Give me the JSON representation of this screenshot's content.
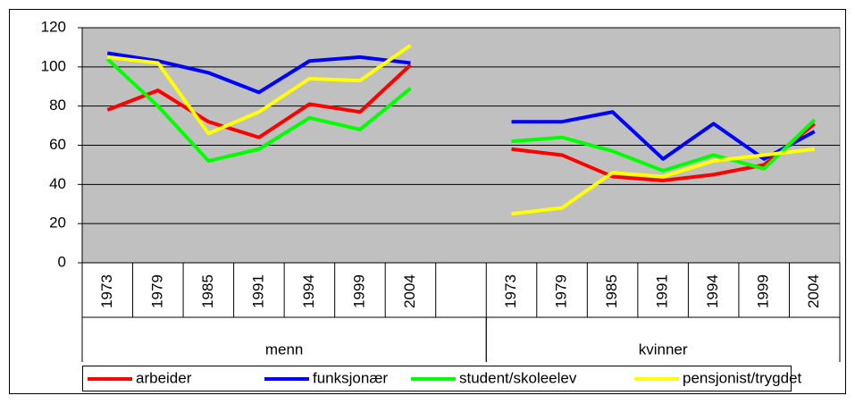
{
  "chart_data": {
    "type": "line",
    "categories": [
      "1973",
      "1979",
      "1985",
      "1991",
      "1994",
      "1999",
      "2004",
      null,
      "1973",
      "1979",
      "1985",
      "1991",
      "1994",
      "1999",
      "2004"
    ],
    "groups": [
      {
        "name": "menn",
        "count": 8
      },
      {
        "name": "kvinner",
        "count": 7
      }
    ],
    "series": [
      {
        "name": "arbeider",
        "color": "#ff0000",
        "values": [
          78,
          88,
          72,
          64,
          81,
          77,
          101,
          null,
          58,
          55,
          44,
          42,
          45,
          50,
          71
        ]
      },
      {
        "name": "funksjonær",
        "color": "#0000ff",
        "values": [
          107,
          103,
          97,
          87,
          103,
          105,
          102,
          null,
          72,
          72,
          77,
          53,
          71,
          53,
          67
        ]
      },
      {
        "name": "student/skoleelev",
        "color": "#00ff00",
        "values": [
          104,
          80,
          52,
          58,
          74,
          68,
          89,
          null,
          62,
          64,
          57,
          47,
          55,
          48,
          73
        ]
      },
      {
        "name": "pensjonist/trygdet",
        "color": "#ffff00",
        "values": [
          105,
          102,
          66,
          77,
          94,
          93,
          111,
          null,
          25,
          28,
          46,
          44,
          52,
          55,
          58
        ]
      }
    ],
    "ylim": [
      0,
      120
    ],
    "yticks": [
      0,
      20,
      40,
      60,
      80,
      100,
      120
    ],
    "grid": true,
    "legend": "bottom",
    "plot_background": "#c0c0c0"
  }
}
